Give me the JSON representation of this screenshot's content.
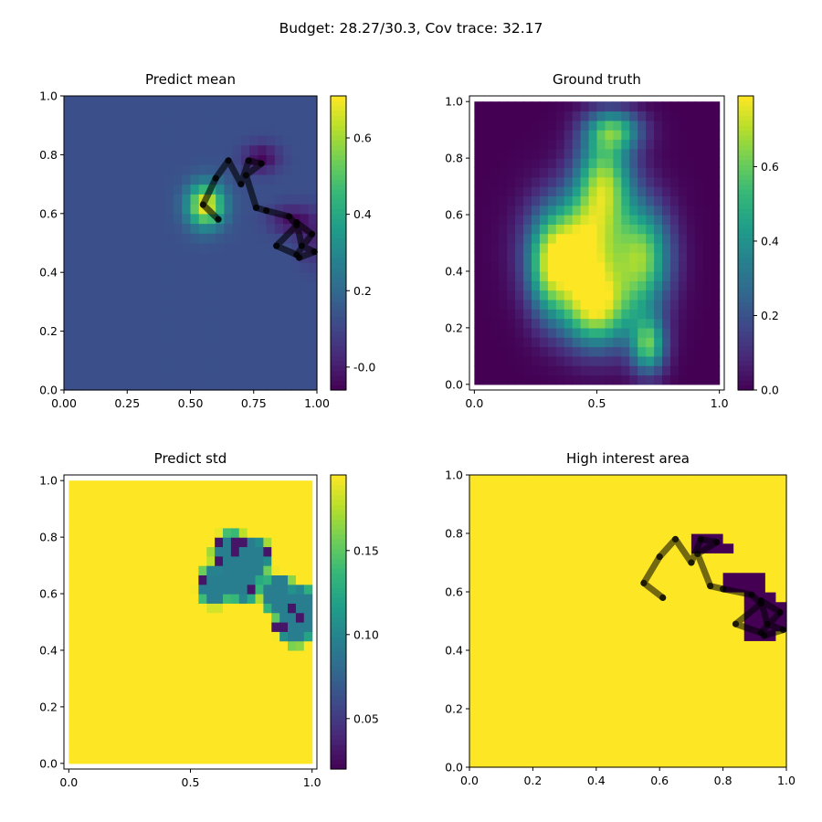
{
  "suptitle": "Budget: 28.27/30.3,  Cov trace: 32.17",
  "colors": {
    "viridis_low": "#440154",
    "viridis_mid": "#21918c",
    "viridis_high": "#fde725",
    "path": "#000000"
  },
  "chart_data": [
    {
      "type": "heatmap",
      "title": "Predict mean",
      "xlim": [
        0,
        1
      ],
      "ylim": [
        0,
        1
      ],
      "xticks": [
        "0.00",
        "0.25",
        "0.50",
        "0.75",
        "1.00"
      ],
      "yticks": [
        "0.0",
        "0.2",
        "0.4",
        "0.6",
        "0.8",
        "1.0"
      ],
      "colorbar": {
        "range": [
          -0.06,
          0.71
        ],
        "ticks": [
          "-0.0",
          "0.2",
          "0.4",
          "0.6"
        ],
        "tick_values": [
          0,
          0.2,
          0.4,
          0.6
        ]
      },
      "background_value": 0.13,
      "features": [
        {
          "kind": "bump",
          "x": 0.56,
          "y": 0.63,
          "sx": 0.05,
          "sy": 0.05,
          "amp": 0.58
        },
        {
          "kind": "bump",
          "x": 0.78,
          "y": 0.79,
          "sx": 0.05,
          "sy": 0.035,
          "amp": -0.18
        },
        {
          "kind": "bump",
          "x": 0.9,
          "y": 0.58,
          "sx": 0.06,
          "sy": 0.035,
          "amp": -0.16
        },
        {
          "kind": "bump",
          "x": 0.98,
          "y": 0.51,
          "sx": 0.04,
          "sy": 0.06,
          "amp": -0.1
        }
      ],
      "path_opacity": 0.6,
      "path": [
        [
          0.61,
          0.58
        ],
        [
          0.55,
          0.63
        ],
        [
          0.6,
          0.72
        ],
        [
          0.65,
          0.78
        ],
        [
          0.7,
          0.7
        ],
        [
          0.73,
          0.78
        ],
        [
          0.78,
          0.77
        ],
        [
          0.72,
          0.73
        ],
        [
          0.76,
          0.62
        ],
        [
          0.8,
          0.61
        ],
        [
          0.89,
          0.59
        ],
        [
          0.92,
          0.56
        ],
        [
          0.84,
          0.49
        ],
        [
          0.92,
          0.46
        ],
        [
          0.98,
          0.53
        ],
        [
          0.92,
          0.57
        ],
        [
          0.94,
          0.49
        ],
        [
          0.99,
          0.47
        ],
        [
          0.93,
          0.45
        ]
      ]
    },
    {
      "type": "heatmap",
      "title": "Ground truth",
      "xlim": [
        -0.02,
        1.02
      ],
      "ylim": [
        -0.02,
        1.02
      ],
      "xticks": [
        "0.0",
        "0.5",
        "1.0"
      ],
      "yticks": [
        "0.0",
        "0.2",
        "0.4",
        "0.6",
        "0.8",
        "1.0"
      ],
      "colorbar": {
        "range": [
          0,
          0.79
        ],
        "ticks": [
          "0.0",
          "0.2",
          "0.4",
          "0.6"
        ],
        "tick_values": [
          0,
          0.2,
          0.4,
          0.6
        ]
      },
      "background_value": 0.0,
      "features": [
        {
          "kind": "bump",
          "x": 0.42,
          "y": 0.48,
          "sx": 0.12,
          "sy": 0.13,
          "amp": 0.76
        },
        {
          "kind": "bump",
          "x": 0.5,
          "y": 0.27,
          "sx": 0.1,
          "sy": 0.1,
          "amp": 0.66
        },
        {
          "kind": "bump",
          "x": 0.53,
          "y": 0.72,
          "sx": 0.08,
          "sy": 0.12,
          "amp": 0.62
        },
        {
          "kind": "bump",
          "x": 0.69,
          "y": 0.45,
          "sx": 0.08,
          "sy": 0.13,
          "amp": 0.58
        },
        {
          "kind": "bump",
          "x": 0.71,
          "y": 0.14,
          "sx": 0.05,
          "sy": 0.07,
          "amp": 0.55
        },
        {
          "kind": "bump",
          "x": 0.57,
          "y": 0.9,
          "sx": 0.08,
          "sy": 0.05,
          "amp": 0.45
        },
        {
          "kind": "bump",
          "x": 0.3,
          "y": 0.4,
          "sx": 0.06,
          "sy": 0.12,
          "amp": 0.35
        }
      ],
      "path": []
    },
    {
      "type": "heatmap",
      "title": "Predict std",
      "xlim": [
        -0.02,
        1.02
      ],
      "ylim": [
        -0.02,
        1.02
      ],
      "xticks": [
        "0.0",
        "0.5",
        "1.0"
      ],
      "yticks": [
        "0.0",
        "0.2",
        "0.4",
        "0.6",
        "0.8",
        "1.0"
      ],
      "colorbar": {
        "range": [
          0.02,
          0.195
        ],
        "ticks": [
          "0.05",
          "0.10",
          "0.15"
        ],
        "tick_values": [
          0.05,
          0.1,
          0.15
        ]
      },
      "background_value": 0.195,
      "features": [
        {
          "kind": "dip",
          "x": 0.6,
          "y": 0.63,
          "r": 0.07,
          "depth": 0.1
        },
        {
          "kind": "dip",
          "x": 0.67,
          "y": 0.74,
          "r": 0.08,
          "depth": 0.1
        },
        {
          "kind": "dip",
          "x": 0.76,
          "y": 0.73,
          "r": 0.07,
          "depth": 0.1
        },
        {
          "kind": "dip",
          "x": 0.72,
          "y": 0.64,
          "r": 0.07,
          "depth": 0.1
        },
        {
          "kind": "dip",
          "x": 0.86,
          "y": 0.6,
          "r": 0.07,
          "depth": 0.1
        },
        {
          "kind": "dip",
          "x": 0.93,
          "y": 0.5,
          "r": 0.08,
          "depth": 0.1
        },
        {
          "kind": "dip",
          "x": 0.95,
          "y": 0.56,
          "r": 0.07,
          "depth": 0.1
        }
      ],
      "dark_cells": [
        [
          0.62,
          0.77
        ],
        [
          0.68,
          0.75
        ],
        [
          0.56,
          0.66
        ],
        [
          0.76,
          0.62
        ],
        [
          0.7,
          0.79
        ],
        [
          0.92,
          0.56
        ],
        [
          0.87,
          0.49
        ],
        [
          0.61,
          0.71
        ],
        [
          0.82,
          0.76
        ],
        [
          0.94,
          0.52
        ]
      ],
      "path": []
    },
    {
      "type": "heatmap",
      "title": "High interest area",
      "xlim": [
        0,
        1
      ],
      "ylim": [
        0,
        1
      ],
      "xticks": [
        "0.0",
        "0.2",
        "0.4",
        "0.6",
        "0.8",
        "1.0"
      ],
      "yticks": [
        "0.0",
        "0.2",
        "0.4",
        "0.6",
        "0.8",
        "1.0"
      ],
      "colorbar": null,
      "background_value": 1,
      "mask_rects": [
        [
          0.7,
          0.72,
          0.8,
          0.8
        ],
        [
          0.8,
          0.73,
          0.83,
          0.76
        ],
        [
          0.8,
          0.59,
          0.93,
          0.66
        ],
        [
          0.88,
          0.43,
          0.96,
          0.6
        ],
        [
          0.93,
          0.47,
          1.0,
          0.56
        ]
      ],
      "path_opacity": 0.55,
      "path": [
        [
          0.61,
          0.58
        ],
        [
          0.55,
          0.63
        ],
        [
          0.6,
          0.72
        ],
        [
          0.65,
          0.78
        ],
        [
          0.7,
          0.7
        ],
        [
          0.73,
          0.78
        ],
        [
          0.78,
          0.77
        ],
        [
          0.72,
          0.73
        ],
        [
          0.76,
          0.62
        ],
        [
          0.8,
          0.61
        ],
        [
          0.89,
          0.59
        ],
        [
          0.92,
          0.56
        ],
        [
          0.84,
          0.49
        ],
        [
          0.92,
          0.46
        ],
        [
          0.98,
          0.53
        ],
        [
          0.92,
          0.57
        ],
        [
          0.94,
          0.49
        ],
        [
          0.99,
          0.47
        ],
        [
          0.93,
          0.45
        ]
      ]
    }
  ]
}
